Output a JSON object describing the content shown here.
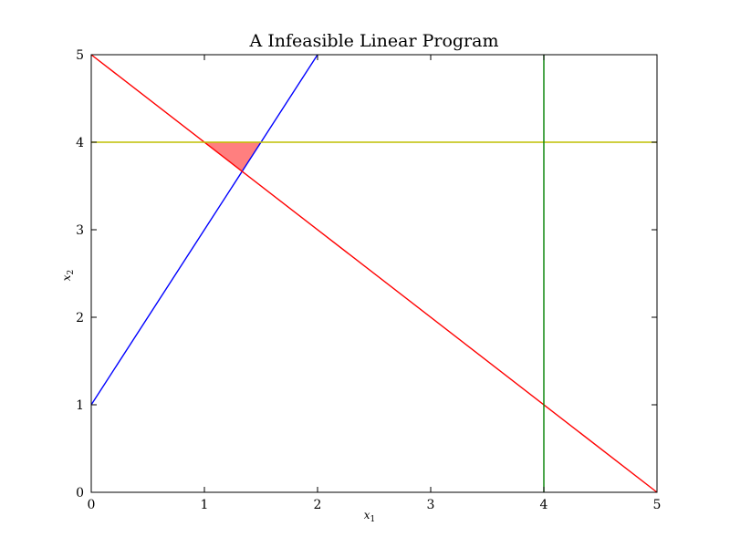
{
  "chart_data": {
    "type": "line",
    "title": "A Infeasible Linear Program",
    "xlabel": "x",
    "xlabel_sub": "1",
    "ylabel": "x",
    "ylabel_sub": "2",
    "xlim": [
      0,
      5
    ],
    "ylim": [
      0,
      5
    ],
    "xticks": [
      "0",
      "1",
      "2",
      "3",
      "4",
      "5"
    ],
    "yticks": [
      "0",
      "1",
      "2",
      "3",
      "4",
      "5"
    ],
    "grid": false,
    "series": [
      {
        "color": "#0000ff",
        "x": [
          0,
          2
        ],
        "y": [
          1,
          5
        ]
      },
      {
        "color": "#ff0000",
        "x": [
          0,
          5
        ],
        "y": [
          5,
          0
        ]
      },
      {
        "color": "#bfbf00",
        "x": [
          0,
          5
        ],
        "y": [
          4,
          4
        ]
      },
      {
        "color": "#008000",
        "x": [
          4,
          4
        ],
        "y": [
          0,
          5
        ]
      }
    ],
    "shaded_region": {
      "color": "#ff0000",
      "opacity": 0.5,
      "polygon": [
        [
          1.0,
          4.0
        ],
        [
          1.5,
          4.0
        ],
        [
          1.333,
          3.667
        ]
      ]
    }
  }
}
